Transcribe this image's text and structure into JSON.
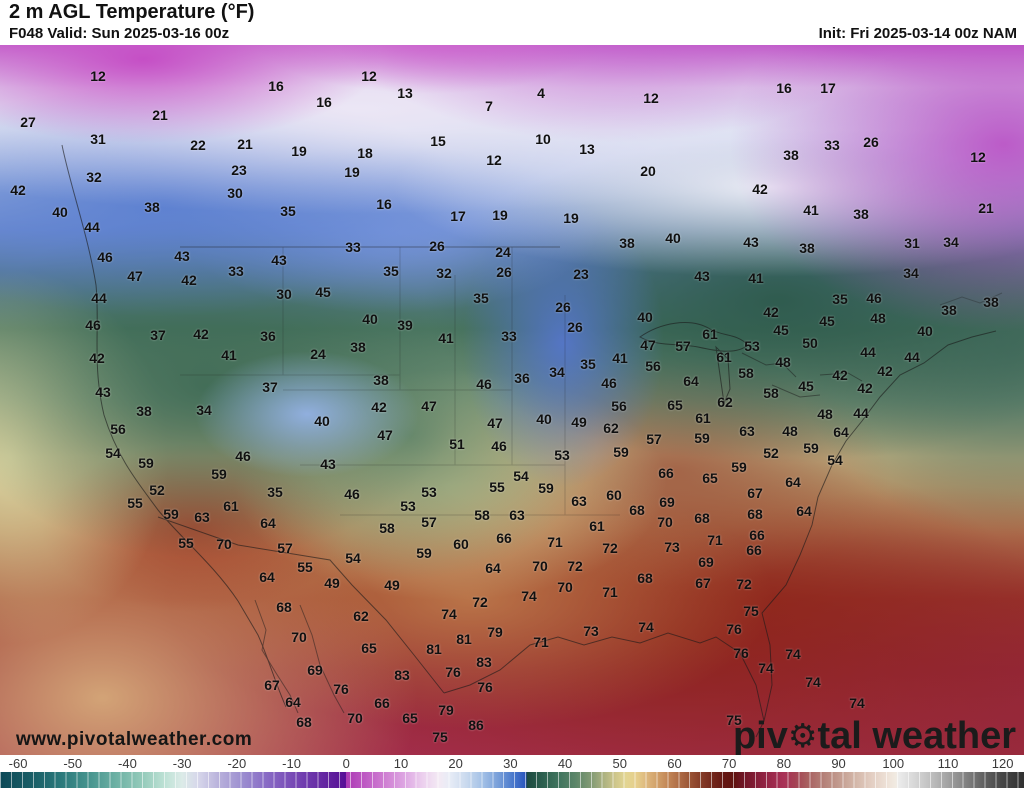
{
  "header": {
    "title": "2 m AGL Temperature (°F)",
    "valid": "F048 Valid: Sun 2025-03-16 00z",
    "init": "Init: Fri 2025-03-14 00z NAM"
  },
  "map": {
    "watermark": "www.pivotalweather.com",
    "logo": {
      "part1": "piv",
      "gear": "⚙",
      "part2": "tal weather"
    },
    "temperature_labels": [
      [
        12,
        98,
        76
      ],
      [
        27,
        28,
        122
      ],
      [
        21,
        160,
        115
      ],
      [
        31,
        98,
        139
      ],
      [
        22,
        198,
        145
      ],
      [
        21,
        245,
        144
      ],
      [
        32,
        94,
        177
      ],
      [
        23,
        239,
        170
      ],
      [
        30,
        235,
        193
      ],
      [
        42,
        18,
        190
      ],
      [
        38,
        152,
        207
      ],
      [
        40,
        60,
        212
      ],
      [
        44,
        92,
        227
      ],
      [
        46,
        105,
        257
      ],
      [
        43,
        182,
        256
      ],
      [
        47,
        135,
        276
      ],
      [
        42,
        189,
        280
      ],
      [
        33,
        236,
        271
      ],
      [
        16,
        276,
        86
      ],
      [
        12,
        369,
        76
      ],
      [
        13,
        405,
        93
      ],
      [
        7,
        489,
        106
      ],
      [
        16,
        324,
        102
      ],
      [
        15,
        438,
        141
      ],
      [
        12,
        494,
        160
      ],
      [
        19,
        299,
        151
      ],
      [
        18,
        365,
        153
      ],
      [
        19,
        352,
        172
      ],
      [
        16,
        384,
        204
      ],
      [
        17,
        458,
        216
      ],
      [
        19,
        500,
        215
      ],
      [
        35,
        288,
        211
      ],
      [
        43,
        279,
        260
      ],
      [
        33,
        353,
        247
      ],
      [
        26,
        437,
        246
      ],
      [
        35,
        391,
        271
      ],
      [
        32,
        444,
        273
      ],
      [
        24,
        503,
        252
      ],
      [
        26,
        504,
        272
      ],
      [
        4,
        541,
        93
      ],
      [
        12,
        651,
        98
      ],
      [
        10,
        543,
        139
      ],
      [
        13,
        587,
        149
      ],
      [
        20,
        648,
        171
      ],
      [
        19,
        571,
        218
      ],
      [
        38,
        627,
        243
      ],
      [
        40,
        673,
        238
      ],
      [
        43,
        751,
        242
      ],
      [
        42,
        760,
        189
      ],
      [
        23,
        581,
        274
      ],
      [
        43,
        702,
        276
      ],
      [
        41,
        756,
        278
      ],
      [
        16,
        784,
        88
      ],
      [
        17,
        828,
        88
      ],
      [
        33,
        832,
        145
      ],
      [
        26,
        871,
        142
      ],
      [
        38,
        791,
        155
      ],
      [
        12,
        978,
        157
      ],
      [
        21,
        986,
        208
      ],
      [
        38,
        861,
        214
      ],
      [
        41,
        811,
        210
      ],
      [
        38,
        807,
        248
      ],
      [
        31,
        912,
        243
      ],
      [
        34,
        951,
        242
      ],
      [
        34,
        911,
        273
      ],
      [
        44,
        99,
        298
      ],
      [
        46,
        93,
        325
      ],
      [
        37,
        158,
        335
      ],
      [
        42,
        201,
        334
      ],
      [
        42,
        97,
        358
      ],
      [
        41,
        229,
        355
      ],
      [
        43,
        103,
        392
      ],
      [
        38,
        144,
        411
      ],
      [
        34,
        204,
        410
      ],
      [
        56,
        118,
        429
      ],
      [
        54,
        113,
        453
      ],
      [
        59,
        146,
        463
      ],
      [
        46,
        243,
        456
      ],
      [
        59,
        219,
        474
      ],
      [
        52,
        157,
        490
      ],
      [
        55,
        135,
        503
      ],
      [
        59,
        171,
        514
      ],
      [
        61,
        231,
        506
      ],
      [
        63,
        202,
        517
      ],
      [
        30,
        284,
        294
      ],
      [
        45,
        323,
        292
      ],
      [
        35,
        481,
        298
      ],
      [
        40,
        370,
        319
      ],
      [
        39,
        405,
        325
      ],
      [
        36,
        268,
        336
      ],
      [
        41,
        446,
        338
      ],
      [
        24,
        318,
        354
      ],
      [
        38,
        358,
        347
      ],
      [
        38,
        381,
        380
      ],
      [
        37,
        270,
        387
      ],
      [
        46,
        484,
        384
      ],
      [
        42,
        379,
        407
      ],
      [
        47,
        429,
        406
      ],
      [
        47,
        495,
        423
      ],
      [
        40,
        322,
        421
      ],
      [
        47,
        385,
        435
      ],
      [
        51,
        457,
        444
      ],
      [
        46,
        499,
        446
      ],
      [
        43,
        328,
        464
      ],
      [
        35,
        275,
        492
      ],
      [
        46,
        352,
        494
      ],
      [
        53,
        429,
        492
      ],
      [
        55,
        497,
        487
      ],
      [
        53,
        408,
        506
      ],
      [
        58,
        482,
        515
      ],
      [
        57,
        429,
        522
      ],
      [
        64,
        268,
        523
      ],
      [
        33,
        509,
        336
      ],
      [
        26,
        563,
        307
      ],
      [
        26,
        575,
        327
      ],
      [
        40,
        645,
        317
      ],
      [
        61,
        710,
        334
      ],
      [
        57,
        683,
        346
      ],
      [
        53,
        752,
        346
      ],
      [
        47,
        648,
        345
      ],
      [
        61,
        724,
        357
      ],
      [
        41,
        620,
        358
      ],
      [
        56,
        653,
        366
      ],
      [
        58,
        746,
        373
      ],
      [
        35,
        588,
        364
      ],
      [
        34,
        557,
        372
      ],
      [
        36,
        522,
        378
      ],
      [
        64,
        691,
        381
      ],
      [
        46,
        609,
        383
      ],
      [
        62,
        725,
        402
      ],
      [
        65,
        675,
        405
      ],
      [
        56,
        619,
        406
      ],
      [
        61,
        703,
        418
      ],
      [
        40,
        544,
        419
      ],
      [
        49,
        579,
        422
      ],
      [
        62,
        611,
        428
      ],
      [
        63,
        747,
        431
      ],
      [
        57,
        654,
        439
      ],
      [
        59,
        702,
        438
      ],
      [
        53,
        562,
        455
      ],
      [
        59,
        621,
        452
      ],
      [
        59,
        739,
        467
      ],
      [
        54,
        521,
        476
      ],
      [
        66,
        666,
        473
      ],
      [
        65,
        710,
        478
      ],
      [
        59,
        546,
        488
      ],
      [
        60,
        614,
        495
      ],
      [
        63,
        579,
        501
      ],
      [
        67,
        755,
        493
      ],
      [
        69,
        667,
        502
      ],
      [
        68,
        637,
        510
      ],
      [
        68,
        702,
        518
      ],
      [
        68,
        755,
        514
      ],
      [
        70,
        665,
        522
      ],
      [
        63,
        517,
        515
      ],
      [
        35,
        840,
        299
      ],
      [
        46,
        874,
        298
      ],
      [
        38,
        949,
        310
      ],
      [
        38,
        991,
        302
      ],
      [
        42,
        771,
        312
      ],
      [
        45,
        827,
        321
      ],
      [
        48,
        878,
        318
      ],
      [
        40,
        925,
        331
      ],
      [
        45,
        781,
        330
      ],
      [
        50,
        810,
        343
      ],
      [
        44,
        868,
        352
      ],
      [
        44,
        912,
        357
      ],
      [
        48,
        783,
        362
      ],
      [
        42,
        885,
        371
      ],
      [
        42,
        840,
        375
      ],
      [
        45,
        806,
        386
      ],
      [
        42,
        865,
        388
      ],
      [
        58,
        771,
        393
      ],
      [
        48,
        825,
        414
      ],
      [
        44,
        861,
        413
      ],
      [
        48,
        790,
        431
      ],
      [
        64,
        841,
        432
      ],
      [
        52,
        771,
        453
      ],
      [
        59,
        811,
        448
      ],
      [
        54,
        835,
        460
      ],
      [
        64,
        793,
        482
      ],
      [
        64,
        804,
        511
      ],
      [
        55,
        186,
        543
      ],
      [
        70,
        224,
        544
      ],
      [
        57,
        285,
        548
      ],
      [
        58,
        387,
        528
      ],
      [
        55,
        305,
        567
      ],
      [
        54,
        353,
        558
      ],
      [
        59,
        424,
        553
      ],
      [
        60,
        461,
        544
      ],
      [
        66,
        504,
        538
      ],
      [
        64,
        267,
        577
      ],
      [
        64,
        493,
        568
      ],
      [
        49,
        332,
        583
      ],
      [
        49,
        392,
        585
      ],
      [
        68,
        284,
        607
      ],
      [
        72,
        480,
        602
      ],
      [
        74,
        449,
        614
      ],
      [
        62,
        361,
        616
      ],
      [
        70,
        299,
        637
      ],
      [
        79,
        495,
        632
      ],
      [
        81,
        464,
        639
      ],
      [
        65,
        369,
        648
      ],
      [
        81,
        434,
        649
      ],
      [
        83,
        484,
        662
      ],
      [
        69,
        315,
        670
      ],
      [
        76,
        453,
        672
      ],
      [
        83,
        402,
        675
      ],
      [
        76,
        485,
        687
      ],
      [
        67,
        272,
        685
      ],
      [
        76,
        341,
        689
      ],
      [
        64,
        293,
        702
      ],
      [
        66,
        382,
        703
      ],
      [
        79,
        446,
        710
      ],
      [
        68,
        304,
        722
      ],
      [
        70,
        355,
        718
      ],
      [
        65,
        410,
        718
      ],
      [
        86,
        476,
        725
      ],
      [
        75,
        440,
        737
      ],
      [
        61,
        597,
        526
      ],
      [
        71,
        555,
        542
      ],
      [
        72,
        610,
        548
      ],
      [
        73,
        672,
        547
      ],
      [
        71,
        715,
        540
      ],
      [
        66,
        757,
        535
      ],
      [
        70,
        540,
        566
      ],
      [
        72,
        575,
        566
      ],
      [
        69,
        706,
        562
      ],
      [
        66,
        754,
        550
      ],
      [
        70,
        565,
        587
      ],
      [
        68,
        645,
        578
      ],
      [
        67,
        703,
        583
      ],
      [
        72,
        744,
        584
      ],
      [
        74,
        529,
        596
      ],
      [
        71,
        610,
        592
      ],
      [
        75,
        751,
        611
      ],
      [
        73,
        591,
        631
      ],
      [
        74,
        646,
        627
      ],
      [
        76,
        734,
        629
      ],
      [
        71,
        541,
        642
      ],
      [
        76,
        741,
        653
      ],
      [
        75,
        734,
        720
      ],
      [
        74,
        793,
        654
      ],
      [
        74,
        813,
        682
      ],
      [
        74,
        857,
        703
      ],
      [
        74,
        766,
        668
      ]
    ]
  },
  "colorbar": {
    "unit": "°F",
    "range": [
      -63.3,
      123.9
    ],
    "ticks": [
      -60,
      -50,
      -40,
      -30,
      -20,
      -10,
      0,
      10,
      20,
      30,
      40,
      50,
      60,
      70,
      80,
      90,
      100,
      110,
      120
    ],
    "stops": [
      [
        -63,
        "#0d4a58"
      ],
      [
        -57,
        "#1b6068"
      ],
      [
        -52,
        "#2b7a7c"
      ],
      [
        -47,
        "#46948e"
      ],
      [
        -42,
        "#6db1a4"
      ],
      [
        -37,
        "#97ccbc"
      ],
      [
        -33,
        "#bfe2d6"
      ],
      [
        -30,
        "#dcebe8"
      ],
      [
        -27,
        "#d6d6ea"
      ],
      [
        -23,
        "#b6aeda"
      ],
      [
        -19,
        "#9c8ed0"
      ],
      [
        -15,
        "#8a6ec6"
      ],
      [
        -11,
        "#7c52ba"
      ],
      [
        -7,
        "#6d38ac"
      ],
      [
        -3,
        "#61209e"
      ],
      [
        -0.1,
        "#560e96"
      ],
      [
        0,
        "#ac3ab4"
      ],
      [
        3,
        "#bc56c2"
      ],
      [
        7,
        "#cf7ed2"
      ],
      [
        11,
        "#dfaae4"
      ],
      [
        14,
        "#ecd0ee"
      ],
      [
        17,
        "#f3eaf4"
      ],
      [
        19,
        "#e7ecf6"
      ],
      [
        22,
        "#c9d9ee"
      ],
      [
        25,
        "#a2c0e6"
      ],
      [
        28,
        "#749cd8"
      ],
      [
        31,
        "#4272ca"
      ],
      [
        32.9,
        "#2a54bc"
      ],
      [
        33,
        "#1d4a40"
      ],
      [
        36,
        "#2c604f"
      ],
      [
        39,
        "#41755f"
      ],
      [
        42,
        "#5d8669"
      ],
      [
        45,
        "#869d76"
      ],
      [
        47,
        "#abb180"
      ],
      [
        49,
        "#cbc48a"
      ],
      [
        51,
        "#e2d592"
      ],
      [
        53,
        "#e6cf8c"
      ],
      [
        55,
        "#ddb67c"
      ],
      [
        57,
        "#d09e68"
      ],
      [
        59,
        "#c08354"
      ],
      [
        61,
        "#ad6a44"
      ],
      [
        63,
        "#985234"
      ],
      [
        65,
        "#843b27"
      ],
      [
        67,
        "#72271b"
      ],
      [
        69,
        "#641712"
      ],
      [
        71,
        "#61120f"
      ],
      [
        72,
        "#6b1420"
      ],
      [
        74,
        "#7b1a30"
      ],
      [
        76,
        "#8d2240"
      ],
      [
        78,
        "#9c2a4c"
      ],
      [
        80,
        "#a93156"
      ],
      [
        82,
        "#a54154"
      ],
      [
        84,
        "#a75c5e"
      ],
      [
        87,
        "#b37e76"
      ],
      [
        90,
        "#c29a8e"
      ],
      [
        93,
        "#d3b6a8"
      ],
      [
        96,
        "#e3cec2"
      ],
      [
        99,
        "#eee2d8"
      ],
      [
        100.5,
        "#f1ebe2"
      ],
      [
        101,
        "#ebebeb"
      ],
      [
        104,
        "#d6d6d6"
      ],
      [
        107,
        "#bebebe"
      ],
      [
        110,
        "#a2a2a2"
      ],
      [
        113,
        "#848484"
      ],
      [
        116,
        "#666666"
      ],
      [
        119,
        "#4c4c4c"
      ],
      [
        122,
        "#3a3a3a"
      ],
      [
        124,
        "#303030"
      ]
    ]
  }
}
